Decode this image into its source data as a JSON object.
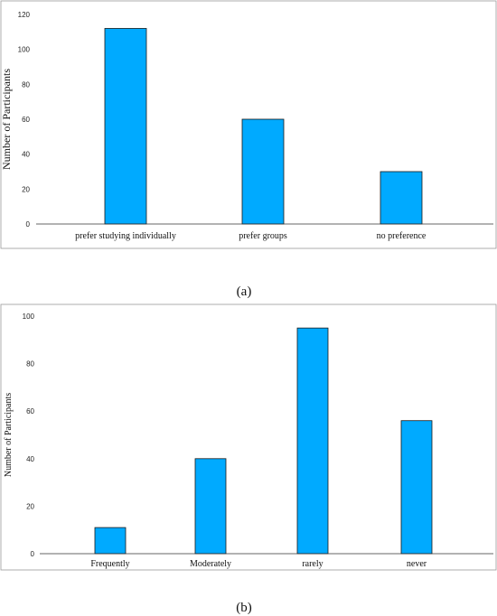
{
  "chart_data": [
    {
      "type": "bar",
      "categories": [
        "prefer studying individually",
        "prefer groups",
        "no preference"
      ],
      "values": [
        112,
        60,
        30
      ],
      "ylabel": "Number of Participants",
      "xlabel": "",
      "ylim": [
        0,
        120
      ],
      "yticks": [
        0,
        20,
        40,
        60,
        80,
        100,
        120
      ],
      "bar_color": "#00aaff",
      "caption": "(a)"
    },
    {
      "type": "bar",
      "categories": [
        "Frequently",
        "Moderately",
        "rarely",
        "never"
      ],
      "values": [
        11,
        40,
        95,
        56
      ],
      "ylabel": "Number of Participants",
      "xlabel": "",
      "ylim": [
        0,
        100
      ],
      "yticks": [
        0,
        20,
        40,
        60,
        80,
        100
      ],
      "bar_color": "#00aaff",
      "caption": "(b)"
    }
  ]
}
